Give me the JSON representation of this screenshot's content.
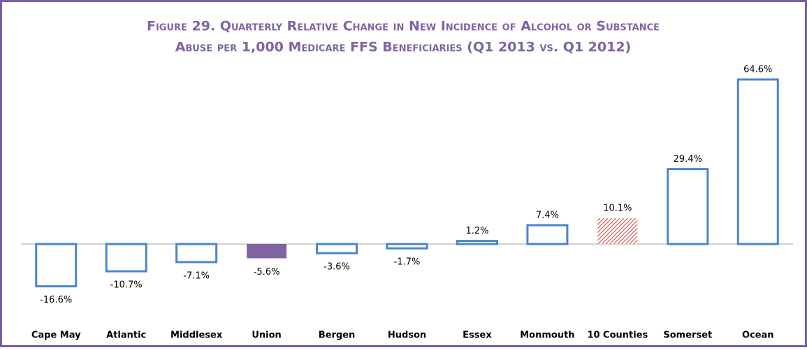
{
  "chart_data": {
    "type": "bar",
    "title_lines": [
      "Figure 29. Quarterly Relative Change in New Incidence of Alcohol or Substance",
      "Abuse per 1,000 Medicare FFS Beneficiaries (Q1 2013 vs. Q1 2012)"
    ],
    "categories": [
      "Cape May",
      "Atlantic",
      "Middlesex",
      "Union",
      "Bergen",
      "Hudson",
      "Essex",
      "Monmouth",
      "10 Counties",
      "Somerset",
      "Ocean"
    ],
    "values": [
      -16.6,
      -10.7,
      -7.1,
      -5.6,
      -3.6,
      -1.7,
      1.2,
      7.4,
      10.1,
      29.4,
      64.6
    ],
    "value_labels": [
      "-16.6%",
      "-10.7%",
      "-7.1%",
      "-5.6%",
      "-3.6%",
      "-1.7%",
      "1.2%",
      "7.4%",
      "10.1%",
      "29.4%",
      "64.6%"
    ],
    "bar_styles": [
      "outline",
      "outline",
      "outline",
      "solid",
      "outline",
      "outline",
      "outline",
      "outline",
      "hatch",
      "outline",
      "outline"
    ],
    "colors": [
      "#4a86c8",
      "#4a86c8",
      "#4a86c8",
      "#8064a2",
      "#4a86c8",
      "#4a86c8",
      "#4a86c8",
      "#4a86c8",
      "#c0504d",
      "#4a86c8",
      "#4a86c8"
    ]
  }
}
